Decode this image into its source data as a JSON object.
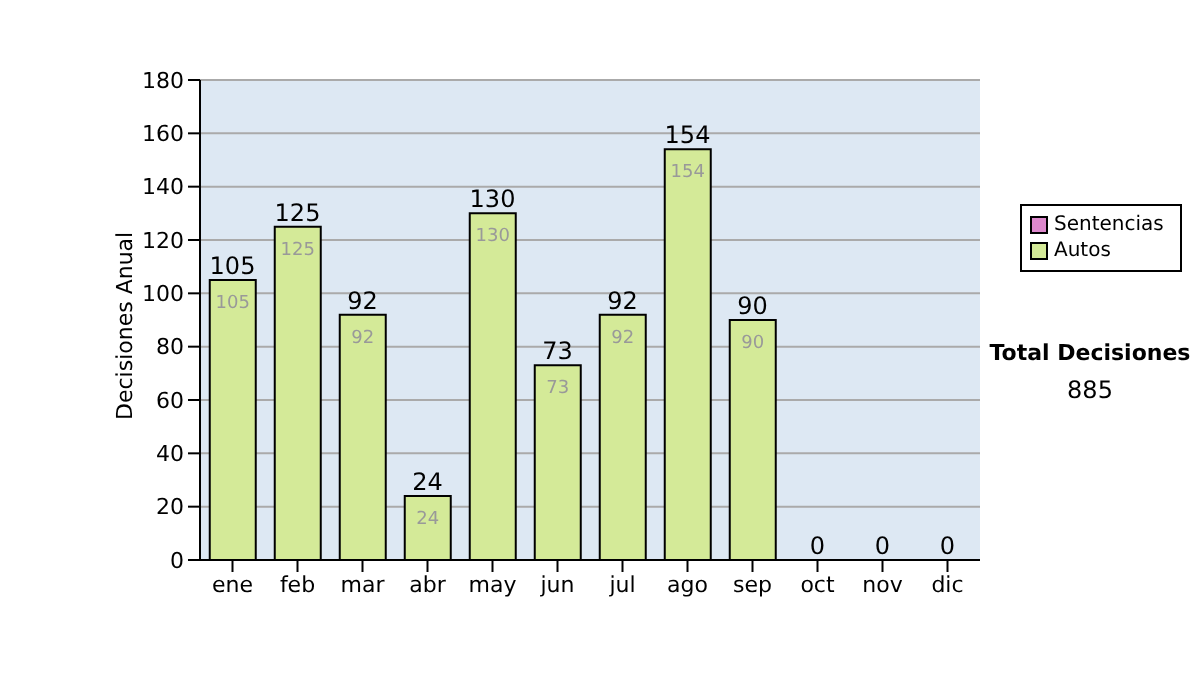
{
  "chart_data": {
    "type": "bar",
    "stacked": true,
    "ylabel": "Decisiones Anual",
    "categories": [
      "ene",
      "feb",
      "mar",
      "abr",
      "may",
      "jun",
      "jul",
      "ago",
      "sep",
      "oct",
      "nov",
      "dic"
    ],
    "series": [
      {
        "name": "Sentencias",
        "color": "#dd88cc",
        "values": [
          0,
          0,
          0,
          0,
          0,
          0,
          0,
          0,
          0,
          0,
          0,
          0
        ]
      },
      {
        "name": "Autos",
        "color": "#d4ea98",
        "values": [
          105,
          125,
          92,
          24,
          130,
          73,
          92,
          154,
          90,
          0,
          0,
          0
        ],
        "value_labels": [
          "105",
          "125",
          "92",
          "24",
          "130",
          "73",
          "92",
          "154",
          "90",
          null,
          null,
          null
        ]
      }
    ],
    "totals": [
      "105",
      "125",
      "92",
      "24",
      "130",
      "73",
      "92",
      "154",
      "90",
      "0",
      "0",
      "0"
    ],
    "ylim": [
      0,
      180
    ],
    "yticks": [
      0,
      20,
      40,
      60,
      80,
      100,
      120,
      140,
      160,
      180
    ],
    "grid": "y",
    "legend": "right",
    "annotations": [
      "Total Decisiones",
      "885"
    ]
  }
}
